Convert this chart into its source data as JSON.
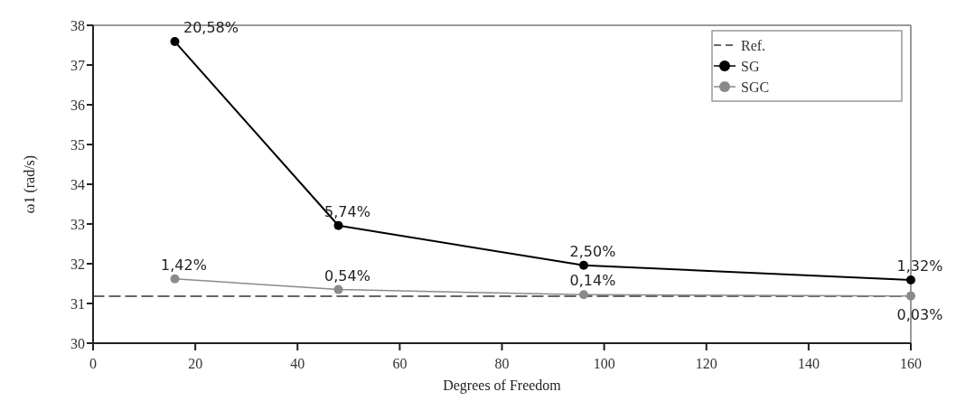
{
  "chart_data": {
    "type": "line",
    "xlabel": "Degrees of Freedom",
    "ylabel": "ω1 (rad/s)",
    "xlim": [
      0,
      160
    ],
    "xticks": [
      0,
      20,
      40,
      60,
      80,
      100,
      120,
      140,
      160
    ],
    "ylim": [
      30,
      38
    ],
    "yticks": [
      30,
      31,
      32,
      33,
      34,
      35,
      36,
      37,
      38
    ],
    "grid": false,
    "legend": "top right",
    "series": [
      {
        "name": "Ref.",
        "color": "#333333",
        "x": [
          0,
          160
        ],
        "values": [
          31.18,
          31.18
        ],
        "line_style": "dashed",
        "marker": "none"
      },
      {
        "name": "SG",
        "color": "#000000",
        "x": [
          16,
          48,
          96,
          160
        ],
        "values": [
          37.59,
          32.96,
          31.96,
          31.59
        ],
        "marker": "circle",
        "line_style": "solid"
      },
      {
        "name": "SGC",
        "color": "#8a8a8a",
        "x": [
          16,
          48,
          96,
          160
        ],
        "values": [
          31.62,
          31.35,
          31.22,
          31.19
        ],
        "marker": "circle",
        "line_style": "solid"
      }
    ],
    "annotations": [
      {
        "text": "20,58%",
        "x": 16,
        "y": 37.59
      },
      {
        "text": "5,74%",
        "x": 48,
        "y": 32.96
      },
      {
        "text": "2,50%",
        "x": 96,
        "y": 31.96
      },
      {
        "text": "1,32%",
        "x": 160,
        "y": 31.59
      },
      {
        "text": "1,42%",
        "x": 16,
        "y": 31.62
      },
      {
        "text": "0,54%",
        "x": 48,
        "y": 31.35
      },
      {
        "text": "0,14%",
        "x": 96,
        "y": 31.22
      },
      {
        "text": "0,03%",
        "x": 160,
        "y": 31.19
      }
    ]
  }
}
